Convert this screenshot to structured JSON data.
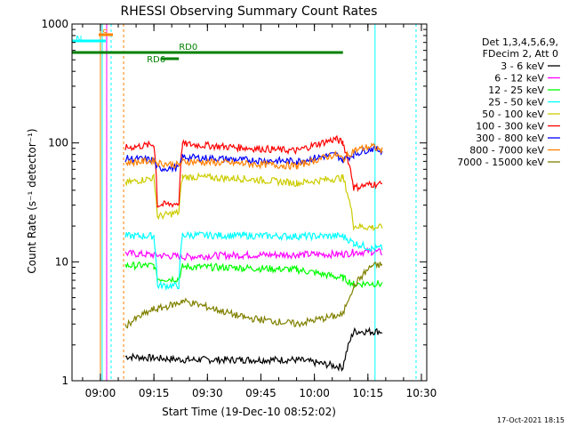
{
  "chart_data": {
    "type": "line",
    "title": "RHESSI Observing Summary Count Rates",
    "xlabel": "Start Time (19-Dec-10 08:52:02)",
    "ylabel": "Count Rate (s⁻¹ detector⁻¹)",
    "yscale": "log",
    "ylim": [
      1,
      1000
    ],
    "xlim": [
      "08:52:02",
      "10:31:30"
    ],
    "x_ticks": [
      "09:00",
      "09:15",
      "09:30",
      "09:45",
      "10:00",
      "10:15",
      "10:30"
    ],
    "y_ticks": [
      "1",
      "10",
      "100",
      "1000"
    ],
    "footer_date": "17-Oct-2021 18:15",
    "legend_header": [
      "Det 1,3,4,5,6,9,",
      "FDecim 2, Att 0"
    ],
    "legend_position": "right",
    "flags": [
      {
        "label": "S",
        "color": "#ff8000",
        "start": "08:59:30",
        "end": "09:03:30"
      },
      {
        "label": "N",
        "color": "#00ffff",
        "start": "08:52:02",
        "end": "09:01:30"
      },
      {
        "label": "RD0",
        "color": "#008000",
        "start": "08:52:02",
        "end": "10:08:00"
      },
      {
        "label": "RD6",
        "color": "#008000",
        "start": "09:17:00",
        "end": "09:22:00"
      }
    ],
    "series": [
      {
        "name": "3 - 6 keV",
        "color": "#000000",
        "x": [
          "09:07",
          "09:24",
          "09:28",
          "09:40",
          "09:55",
          "10:08",
          "10:11",
          "10:16",
          "10:19"
        ],
        "y": [
          1.6,
          1.5,
          1.5,
          1.5,
          1.5,
          1.3,
          2.6,
          2.6,
          2.6
        ]
      },
      {
        "name": "6 - 12 keV",
        "color": "#ff00ff",
        "x": [
          "09:07",
          "09:24",
          "09:28",
          "09:40",
          "09:55",
          "10:08",
          "10:11",
          "10:16",
          "10:19"
        ],
        "y": [
          11.8,
          11.0,
          11.2,
          11.4,
          11.5,
          11.6,
          12.0,
          12.2,
          12.0
        ]
      },
      {
        "name": "12 - 25 keV",
        "color": "#00ff00",
        "x": [
          "09:07",
          "09:15",
          "09:16",
          "09:22",
          "09:23",
          "09:40",
          "09:55",
          "10:08",
          "10:11",
          "10:16",
          "10:19"
        ],
        "y": [
          9.3,
          9.3,
          7.2,
          7.2,
          9.1,
          8.9,
          8.6,
          7.3,
          6.5,
          6.6,
          6.5
        ]
      },
      {
        "name": "25 - 50 keV",
        "color": "#00ffff",
        "x": [
          "09:07",
          "09:15",
          "09:16",
          "09:22",
          "09:23",
          "09:40",
          "09:55",
          "10:08",
          "10:11",
          "10:16",
          "10:19"
        ],
        "y": [
          16.5,
          16.5,
          6.3,
          6.3,
          16.8,
          16.6,
          16.4,
          16.5,
          14.4,
          13.0,
          13.0
        ]
      },
      {
        "name": "50 - 100 keV",
        "color": "#cccc00",
        "x": [
          "09:07",
          "09:15",
          "09:16",
          "09:22",
          "09:23",
          "09:40",
          "09:55",
          "10:08",
          "10:11",
          "10:16",
          "10:19"
        ],
        "y": [
          46,
          51,
          24,
          26,
          52,
          50,
          46,
          51,
          20,
          19.5,
          19.5
        ]
      },
      {
        "name": "100 - 300 keV",
        "color": "#ff0000",
        "x": [
          "09:07",
          "09:15",
          "09:16",
          "09:22",
          "09:23",
          "09:40",
          "09:55",
          "10:06",
          "10:08",
          "10:11",
          "10:16",
          "10:19"
        ],
        "y": [
          91,
          97,
          30,
          31,
          98,
          91,
          86,
          108,
          100,
          42,
          45,
          45
        ]
      },
      {
        "name": "300 - 800 keV",
        "color": "#0000ff",
        "x": [
          "09:07",
          "09:15",
          "09:16",
          "09:22",
          "09:23",
          "09:40",
          "09:55",
          "10:06",
          "10:08",
          "10:11",
          "10:16",
          "10:19"
        ],
        "y": [
          74,
          72,
          61,
          62,
          76,
          72,
          70,
          80,
          72,
          80,
          90,
          86
        ]
      },
      {
        "name": "800 - 7000 keV",
        "color": "#ff8000",
        "x": [
          "09:07",
          "09:15",
          "09:16",
          "09:22",
          "09:23",
          "09:40",
          "09:55",
          "10:06",
          "10:08",
          "10:11",
          "10:16",
          "10:19"
        ],
        "y": [
          68,
          71,
          68,
          65,
          70,
          67,
          64,
          80,
          73,
          86,
          94,
          86
        ]
      },
      {
        "name": "7000 - 15000 keV",
        "color": "#808000",
        "x": [
          "09:07",
          "09:15",
          "09:16",
          "09:22",
          "09:23",
          "09:40",
          "09:55",
          "10:08",
          "10:11",
          "10:16",
          "10:19"
        ],
        "y": [
          2.9,
          4.0,
          4.0,
          4.5,
          4.7,
          3.4,
          3.0,
          3.6,
          6.2,
          9.2,
          9.5
        ]
      }
    ]
  }
}
